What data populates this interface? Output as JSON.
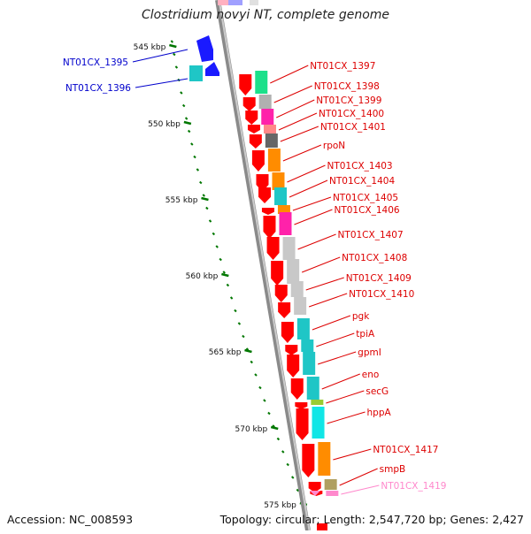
{
  "title": "Clostridium novyi NT, complete genome",
  "footer": {
    "accession": "Accession: NC_008593",
    "summary": "Topology: circular; Length: 2,547,720 bp; Genes: 2,427"
  },
  "colors": {
    "forward_gene": "#1a1aff",
    "reverse_gene": "#ff0000",
    "forward_label": "#0000cc",
    "reverse_label": "#dd0000",
    "pseudo_label": "#ff88cc",
    "tick": "#007700",
    "backbone": "#999999"
  },
  "scale": {
    "unit": "kbp",
    "ticks": [
      "545 kbp",
      "550 kbp",
      "555 kbp",
      "560 kbp",
      "565 kbp",
      "570 kbp",
      "575 kbp"
    ]
  },
  "genes": [
    {
      "label": "NT01CX_1395",
      "strand": "forward",
      "cog": "#1a1aff"
    },
    {
      "label": "NT01CX_1396",
      "strand": "forward",
      "cog": "#1fc6c6"
    },
    {
      "label": "NT01CX_1397",
      "strand": "reverse",
      "cog": "#1be08a"
    },
    {
      "label": "NT01CX_1398",
      "strand": "reverse",
      "cog": "#b0b0b0"
    },
    {
      "label": "NT01CX_1399",
      "strand": "reverse",
      "cog": "#ff22aa"
    },
    {
      "label": "NT01CX_1400",
      "strand": "reverse",
      "cog": "#ff8888"
    },
    {
      "label": "NT01CX_1401",
      "strand": "reverse",
      "cog": "#666666"
    },
    {
      "label": "rpoN",
      "strand": "reverse",
      "cog": "#ff8c00"
    },
    {
      "label": "NT01CX_1403",
      "strand": "reverse",
      "cog": "#ff8c00"
    },
    {
      "label": "NT01CX_1404",
      "strand": "reverse",
      "cog": "#1fc6c6"
    },
    {
      "label": "NT01CX_1405",
      "strand": "reverse",
      "cog": "#ff8c00"
    },
    {
      "label": "NT01CX_1406",
      "strand": "reverse",
      "cog": "#ff22aa"
    },
    {
      "label": "NT01CX_1407",
      "strand": "reverse",
      "cog": "#c8c8c8"
    },
    {
      "label": "NT01CX_1408",
      "strand": "reverse",
      "cog": "#c8c8c8"
    },
    {
      "label": "NT01CX_1409",
      "strand": "reverse",
      "cog": "#c8c8c8"
    },
    {
      "label": "NT01CX_1410",
      "strand": "reverse",
      "cog": "#c8c8c8"
    },
    {
      "label": "pgk",
      "strand": "reverse",
      "cog": "#1fc6c6"
    },
    {
      "label": "tpiA",
      "strand": "reverse",
      "cog": "#1fc6c6"
    },
    {
      "label": "gpmI",
      "strand": "reverse",
      "cog": "#1fc6c6"
    },
    {
      "label": "eno",
      "strand": "reverse",
      "cog": "#1fc6c6"
    },
    {
      "label": "secG",
      "strand": "reverse",
      "cog": "#99cc33"
    },
    {
      "label": "hppA",
      "strand": "reverse",
      "cog": "#11e6e6"
    },
    {
      "label": "NT01CX_1417",
      "strand": "reverse",
      "cog": "#ff8c00"
    },
    {
      "label": "smpB",
      "strand": "reverse",
      "cog": "#b0a060"
    },
    {
      "label": "NT01CX_1419",
      "strand": "reverse",
      "cog": "#ff88cc"
    }
  ]
}
